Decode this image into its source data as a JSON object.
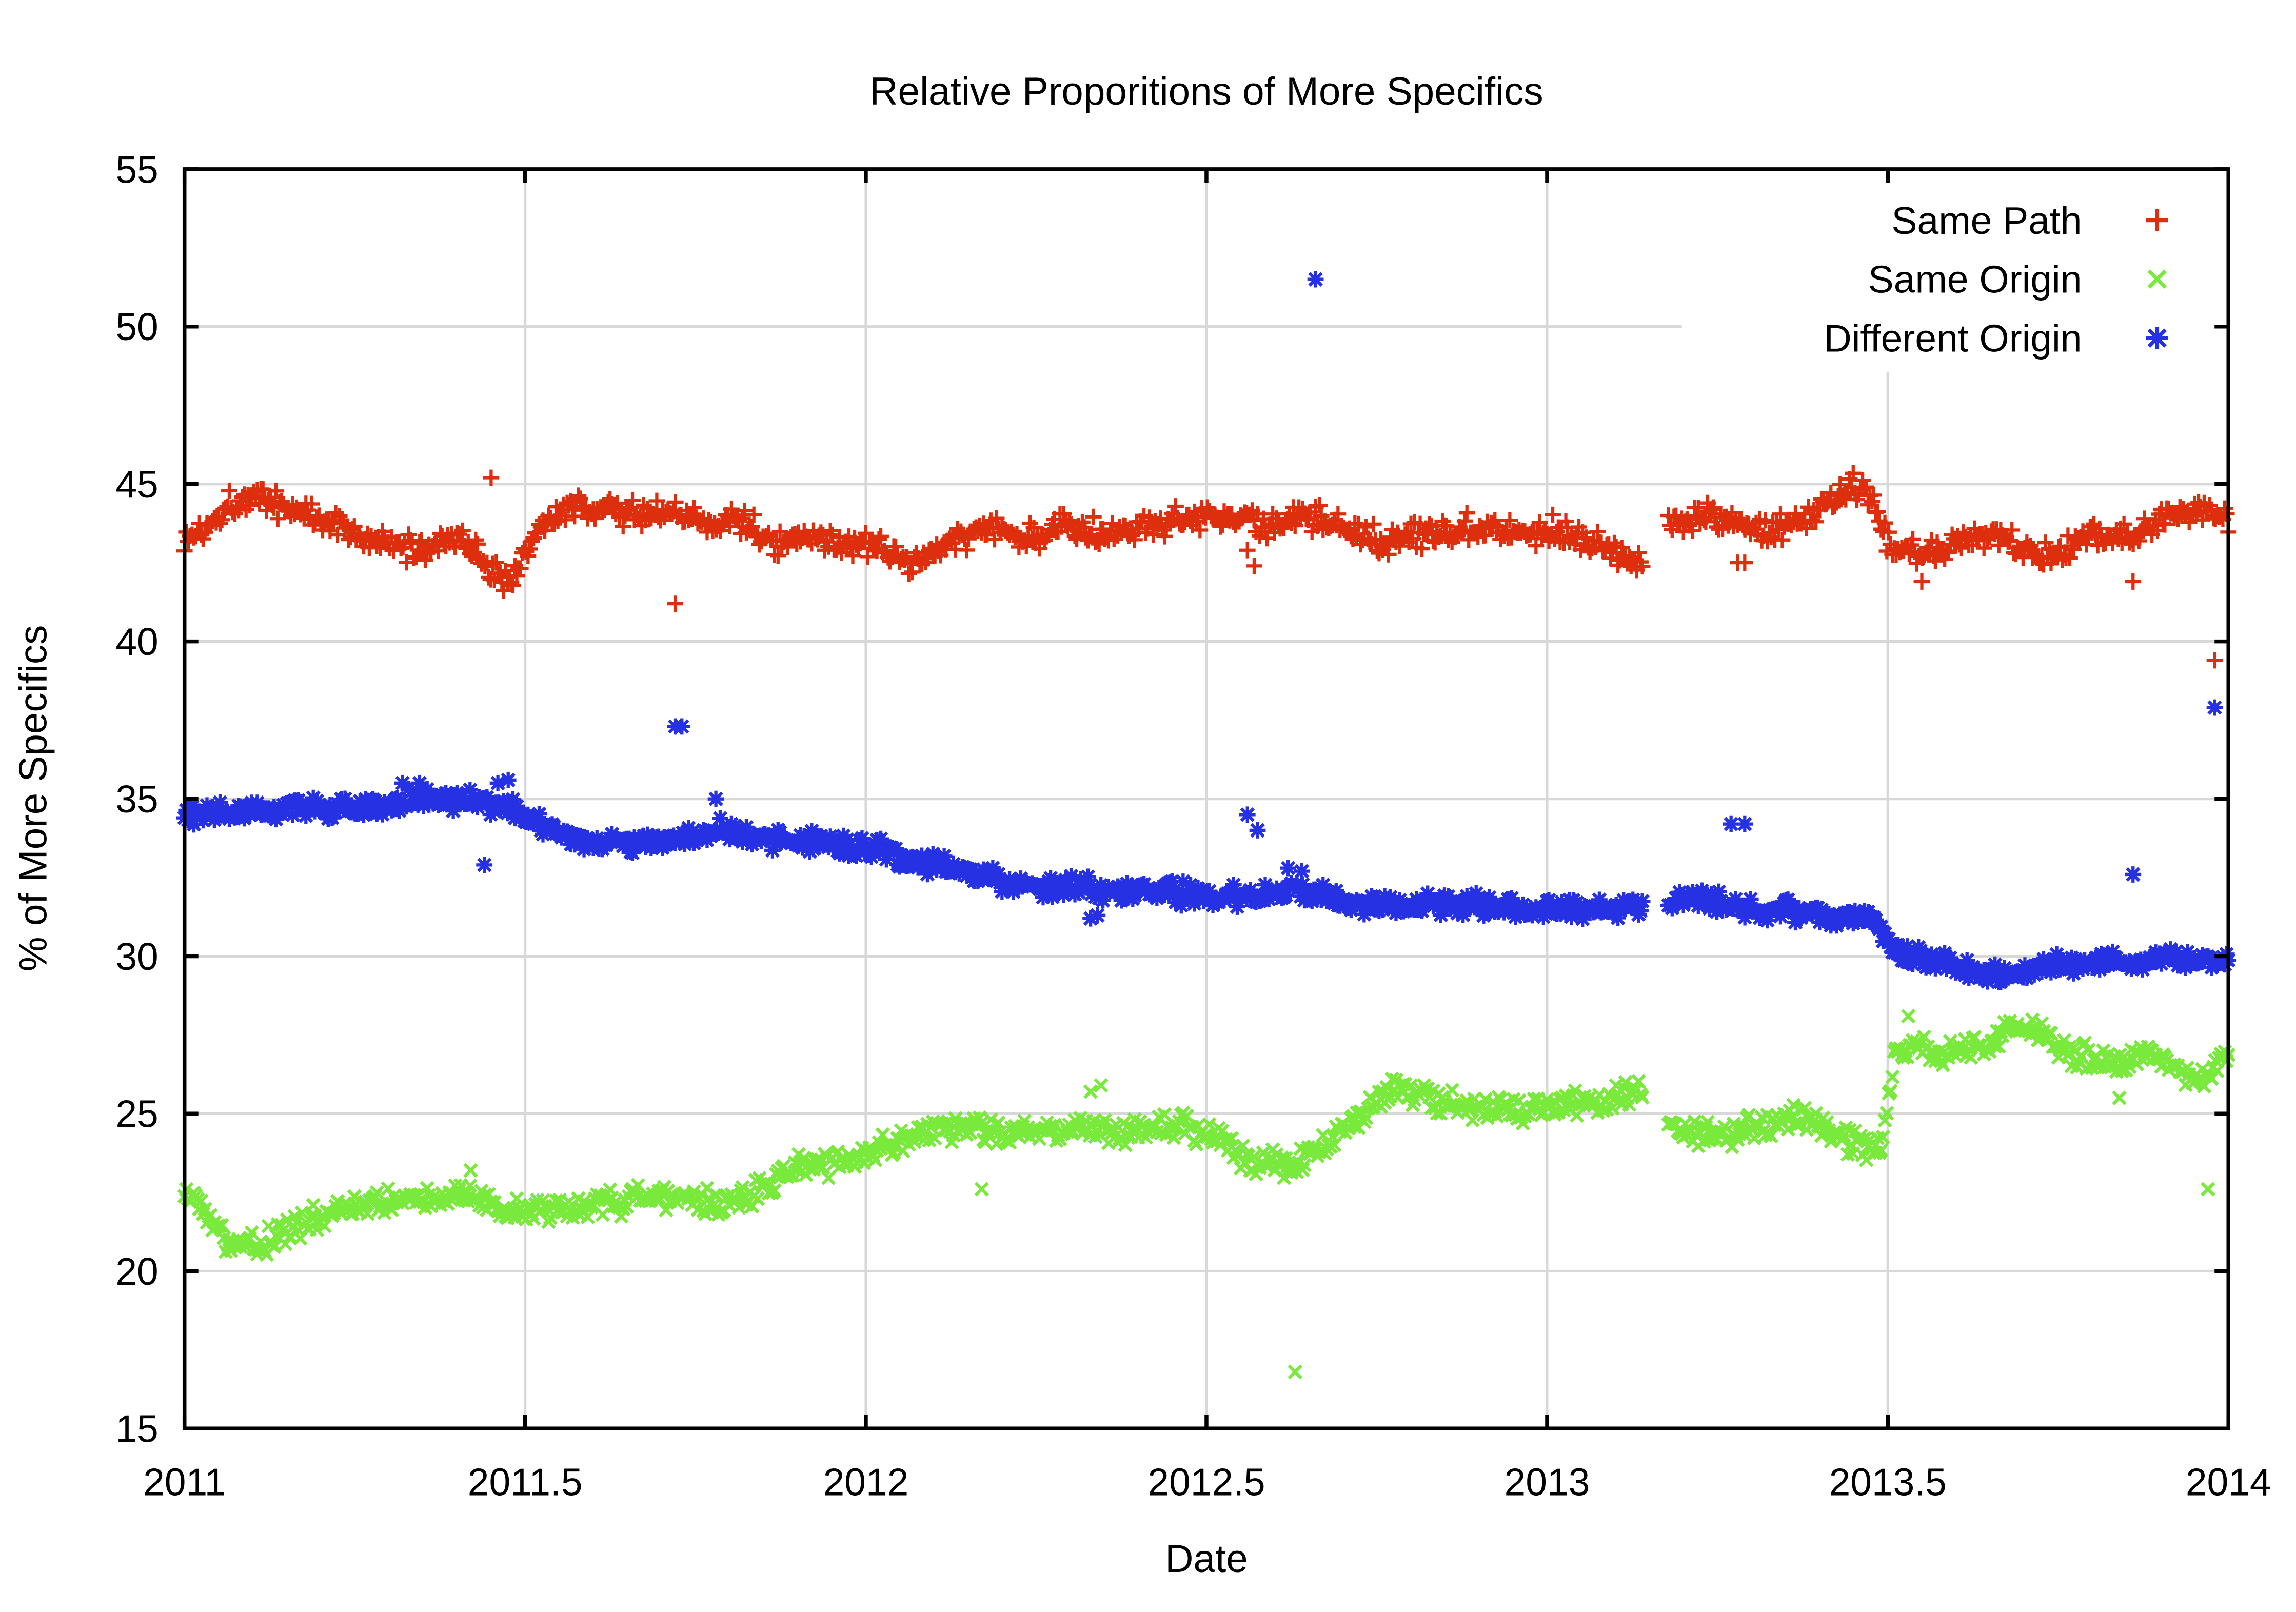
{
  "title": "Relative Proporitions of More Specifics",
  "chart_data": {
    "type": "scatter",
    "title": "Relative Proporitions of More Specifics",
    "xlabel": "Date",
    "ylabel": "% of More Specifics",
    "xlim": [
      2011,
      2014
    ],
    "ylim": [
      15,
      55
    ],
    "grid": true,
    "background_color": "#ffffff",
    "grid_color": "#d8d8d8",
    "border_color": "#000000",
    "legend_position": "top-right-inside",
    "legend_opaque": true,
    "x_ticks": {
      "values": [
        2011,
        2011.5,
        2012,
        2012.5,
        2013,
        2013.5,
        2014
      ],
      "labels": [
        "2011",
        "2011.5",
        "2012",
        "2012.5",
        "2013",
        "2013.5",
        "2014"
      ]
    },
    "y_ticks": {
      "values": [
        15,
        20,
        25,
        30,
        35,
        40,
        45,
        50,
        55
      ],
      "labels": [
        "15",
        "20",
        "25",
        "30",
        "35",
        "40",
        "45",
        "50",
        "55"
      ]
    },
    "points_per_year": 365,
    "data_gap_x": [
      2013.142,
      2013.178
    ],
    "noise_seed": 1337,
    "series": [
      {
        "name": "Same Path",
        "marker": "plus",
        "color": "#dd2f0e",
        "jitter": 0.26,
        "trend": [
          [
            2011.0,
            43.2
          ],
          [
            2011.03,
            43.6
          ],
          [
            2011.06,
            44.3
          ],
          [
            2011.09,
            44.6
          ],
          [
            2011.12,
            44.5
          ],
          [
            2011.16,
            44.2
          ],
          [
            2011.2,
            43.9
          ],
          [
            2011.24,
            43.6
          ],
          [
            2011.27,
            43.2
          ],
          [
            2011.31,
            43.0
          ],
          [
            2011.34,
            42.9
          ],
          [
            2011.38,
            43.2
          ],
          [
            2011.41,
            43.3
          ],
          [
            2011.44,
            42.5
          ],
          [
            2011.46,
            42.1
          ],
          [
            2011.48,
            41.9
          ],
          [
            2011.49,
            42.5
          ],
          [
            2011.52,
            43.6
          ],
          [
            2011.56,
            44.1
          ],
          [
            2011.59,
            44.3
          ],
          [
            2011.63,
            44.2
          ],
          [
            2011.67,
            44.0
          ],
          [
            2011.71,
            44.1
          ],
          [
            2011.74,
            43.9
          ],
          [
            2011.77,
            43.7
          ],
          [
            2011.8,
            44.0
          ],
          [
            2011.83,
            43.6
          ],
          [
            2011.87,
            43.2
          ],
          [
            2011.91,
            43.1
          ],
          [
            2011.94,
            43.3
          ],
          [
            2011.97,
            43.1
          ],
          [
            2012.0,
            43.0
          ],
          [
            2012.04,
            42.7
          ],
          [
            2012.07,
            42.6
          ],
          [
            2012.11,
            42.9
          ],
          [
            2012.14,
            43.3
          ],
          [
            2012.17,
            43.6
          ],
          [
            2012.21,
            43.4
          ],
          [
            2012.25,
            43.3
          ],
          [
            2012.29,
            43.7
          ],
          [
            2012.33,
            43.6
          ],
          [
            2012.37,
            43.5
          ],
          [
            2012.41,
            43.7
          ],
          [
            2012.45,
            43.8
          ],
          [
            2012.49,
            44.0
          ],
          [
            2012.53,
            44.0
          ],
          [
            2012.57,
            43.7
          ],
          [
            2012.61,
            43.8
          ],
          [
            2012.65,
            43.9
          ],
          [
            2012.69,
            43.7
          ],
          [
            2012.73,
            43.4
          ],
          [
            2012.77,
            43.2
          ],
          [
            2012.81,
            43.4
          ],
          [
            2012.85,
            43.5
          ],
          [
            2012.89,
            43.7
          ],
          [
            2012.93,
            43.6
          ],
          [
            2012.97,
            43.5
          ],
          [
            2013.01,
            43.6
          ],
          [
            2013.05,
            43.3
          ],
          [
            2013.09,
            43.0
          ],
          [
            2013.12,
            42.7
          ],
          [
            2013.14,
            42.5
          ],
          [
            2013.18,
            43.7
          ],
          [
            2013.22,
            44.0
          ],
          [
            2013.26,
            43.9
          ],
          [
            2013.3,
            43.5
          ],
          [
            2013.34,
            43.6
          ],
          [
            2013.38,
            43.8
          ],
          [
            2013.42,
            44.6
          ],
          [
            2013.45,
            45.0
          ],
          [
            2013.47,
            44.9
          ],
          [
            2013.5,
            43.2
          ],
          [
            2013.53,
            42.9
          ],
          [
            2013.57,
            42.8
          ],
          [
            2013.61,
            43.3
          ],
          [
            2013.65,
            43.4
          ],
          [
            2013.68,
            43.2
          ],
          [
            2013.72,
            42.7
          ],
          [
            2013.76,
            43.0
          ],
          [
            2013.8,
            43.4
          ],
          [
            2013.84,
            43.3
          ],
          [
            2013.88,
            43.6
          ],
          [
            2013.92,
            44.0
          ],
          [
            2013.95,
            44.2
          ],
          [
            2014.0,
            43.9
          ]
        ],
        "outliers": [
          [
            2011.45,
            45.2
          ],
          [
            2011.72,
            41.2
          ],
          [
            2012.56,
            42.9
          ],
          [
            2012.57,
            42.4
          ],
          [
            2013.28,
            42.5
          ],
          [
            2013.29,
            42.5
          ],
          [
            2013.55,
            41.9
          ],
          [
            2013.86,
            41.9
          ],
          [
            2013.98,
            39.4
          ]
        ]
      },
      {
        "name": "Same Origin",
        "marker": "cross",
        "color": "#79e93b",
        "jitter": 0.26,
        "trend": [
          [
            2011.0,
            22.3
          ],
          [
            2011.03,
            22.0
          ],
          [
            2011.05,
            21.3
          ],
          [
            2011.07,
            20.7
          ],
          [
            2011.1,
            20.8
          ],
          [
            2011.13,
            21.0
          ],
          [
            2011.16,
            21.4
          ],
          [
            2011.19,
            21.7
          ],
          [
            2011.22,
            21.9
          ],
          [
            2011.26,
            22.1
          ],
          [
            2011.3,
            22.2
          ],
          [
            2011.34,
            22.2
          ],
          [
            2011.38,
            22.4
          ],
          [
            2011.41,
            22.5
          ],
          [
            2011.44,
            22.2
          ],
          [
            2011.47,
            22.0
          ],
          [
            2011.51,
            21.9
          ],
          [
            2011.55,
            22.0
          ],
          [
            2011.59,
            22.1
          ],
          [
            2011.63,
            22.2
          ],
          [
            2011.67,
            22.3
          ],
          [
            2011.71,
            22.4
          ],
          [
            2011.75,
            22.3
          ],
          [
            2011.79,
            22.1
          ],
          [
            2011.83,
            22.5
          ],
          [
            2011.87,
            23.0
          ],
          [
            2011.91,
            23.3
          ],
          [
            2011.95,
            23.5
          ],
          [
            2011.99,
            23.7
          ],
          [
            2012.03,
            24.0
          ],
          [
            2012.07,
            24.3
          ],
          [
            2012.11,
            24.5
          ],
          [
            2012.15,
            24.5
          ],
          [
            2012.19,
            24.4
          ],
          [
            2012.23,
            24.4
          ],
          [
            2012.27,
            24.5
          ],
          [
            2012.31,
            24.5
          ],
          [
            2012.35,
            24.4
          ],
          [
            2012.39,
            24.5
          ],
          [
            2012.43,
            24.6
          ],
          [
            2012.47,
            24.6
          ],
          [
            2012.51,
            24.3
          ],
          [
            2012.54,
            24.0
          ],
          [
            2012.57,
            23.3
          ],
          [
            2012.61,
            23.4
          ],
          [
            2012.65,
            23.6
          ],
          [
            2012.69,
            24.4
          ],
          [
            2012.73,
            25.0
          ],
          [
            2012.77,
            25.6
          ],
          [
            2012.8,
            25.8
          ],
          [
            2012.83,
            25.4
          ],
          [
            2012.87,
            25.3
          ],
          [
            2012.91,
            25.2
          ],
          [
            2012.95,
            25.1
          ],
          [
            2012.99,
            25.2
          ],
          [
            2013.03,
            25.3
          ],
          [
            2013.07,
            25.4
          ],
          [
            2013.11,
            25.6
          ],
          [
            2013.14,
            25.8
          ],
          [
            2013.18,
            24.6
          ],
          [
            2013.22,
            24.4
          ],
          [
            2013.26,
            24.2
          ],
          [
            2013.3,
            24.5
          ],
          [
            2013.34,
            24.7
          ],
          [
            2013.38,
            24.9
          ],
          [
            2013.42,
            24.4
          ],
          [
            2013.45,
            24.0
          ],
          [
            2013.49,
            23.8
          ],
          [
            2013.51,
            26.9
          ],
          [
            2013.54,
            27.2
          ],
          [
            2013.57,
            26.8
          ],
          [
            2013.61,
            27.0
          ],
          [
            2013.65,
            27.3
          ],
          [
            2013.68,
            27.6
          ],
          [
            2013.71,
            27.7
          ],
          [
            2013.74,
            27.2
          ],
          [
            2013.77,
            26.9
          ],
          [
            2013.81,
            26.6
          ],
          [
            2013.85,
            26.5
          ],
          [
            2013.88,
            27.0
          ],
          [
            2013.91,
            26.7
          ],
          [
            2013.94,
            26.3
          ],
          [
            2013.97,
            26.2
          ],
          [
            2014.0,
            26.8
          ]
        ],
        "outliers": [
          [
            2011.42,
            23.2
          ],
          [
            2012.17,
            22.6
          ],
          [
            2012.33,
            25.7
          ],
          [
            2012.345,
            25.9
          ],
          [
            2012.63,
            16.8
          ],
          [
            2013.53,
            28.1
          ],
          [
            2013.84,
            25.5
          ],
          [
            2013.97,
            22.6
          ]
        ]
      },
      {
        "name": "Different Origin",
        "marker": "asterisk",
        "color": "#2531e3",
        "jitter": 0.2,
        "trend": [
          [
            2011.0,
            34.5
          ],
          [
            2011.06,
            34.6
          ],
          [
            2011.12,
            34.6
          ],
          [
            2011.18,
            34.7
          ],
          [
            2011.24,
            34.7
          ],
          [
            2011.29,
            34.8
          ],
          [
            2011.33,
            35.0
          ],
          [
            2011.37,
            35.0
          ],
          [
            2011.41,
            35.0
          ],
          [
            2011.45,
            34.8
          ],
          [
            2011.48,
            34.7
          ],
          [
            2011.51,
            34.3
          ],
          [
            2011.55,
            33.9
          ],
          [
            2011.59,
            33.7
          ],
          [
            2011.63,
            33.6
          ],
          [
            2011.67,
            33.6
          ],
          [
            2011.71,
            33.7
          ],
          [
            2011.75,
            33.8
          ],
          [
            2011.79,
            34.0
          ],
          [
            2011.82,
            33.9
          ],
          [
            2011.86,
            33.7
          ],
          [
            2011.9,
            33.7
          ],
          [
            2011.94,
            33.6
          ],
          [
            2011.98,
            33.5
          ],
          [
            2012.02,
            33.4
          ],
          [
            2012.06,
            33.1
          ],
          [
            2012.1,
            32.9
          ],
          [
            2012.14,
            32.7
          ],
          [
            2012.18,
            32.5
          ],
          [
            2012.22,
            32.3
          ],
          [
            2012.26,
            32.2
          ],
          [
            2012.31,
            32.2
          ],
          [
            2012.36,
            32.1
          ],
          [
            2012.41,
            32.1
          ],
          [
            2012.46,
            32.0
          ],
          [
            2012.51,
            31.9
          ],
          [
            2012.56,
            31.9
          ],
          [
            2012.61,
            32.0
          ],
          [
            2012.66,
            32.0
          ],
          [
            2012.71,
            31.7
          ],
          [
            2012.76,
            31.6
          ],
          [
            2012.81,
            31.6
          ],
          [
            2012.86,
            31.7
          ],
          [
            2012.91,
            31.6
          ],
          [
            2012.96,
            31.5
          ],
          [
            2013.01,
            31.4
          ],
          [
            2013.06,
            31.5
          ],
          [
            2013.11,
            31.6
          ],
          [
            2013.14,
            31.7
          ],
          [
            2013.18,
            31.8
          ],
          [
            2013.23,
            31.8
          ],
          [
            2013.27,
            31.6
          ],
          [
            2013.31,
            31.5
          ],
          [
            2013.36,
            31.4
          ],
          [
            2013.41,
            31.3
          ],
          [
            2013.45,
            31.2
          ],
          [
            2013.48,
            31.1
          ],
          [
            2013.51,
            30.2
          ],
          [
            2013.54,
            30.0
          ],
          [
            2013.58,
            29.8
          ],
          [
            2013.62,
            29.5
          ],
          [
            2013.65,
            29.4
          ],
          [
            2013.69,
            29.5
          ],
          [
            2013.73,
            29.7
          ],
          [
            2013.77,
            29.7
          ],
          [
            2013.81,
            29.8
          ],
          [
            2013.86,
            29.8
          ],
          [
            2013.91,
            29.9
          ],
          [
            2013.96,
            29.9
          ],
          [
            2014.0,
            29.8
          ]
        ],
        "outliers": [
          [
            2011.32,
            35.5
          ],
          [
            2011.345,
            35.5
          ],
          [
            2011.44,
            32.9
          ],
          [
            2011.46,
            35.5
          ],
          [
            2011.475,
            35.6
          ],
          [
            2011.72,
            37.3
          ],
          [
            2011.73,
            37.3
          ],
          [
            2011.78,
            35.0
          ],
          [
            2012.33,
            31.2
          ],
          [
            2012.34,
            31.3
          ],
          [
            2012.56,
            34.5
          ],
          [
            2012.575,
            34.0
          ],
          [
            2012.62,
            32.8
          ],
          [
            2012.64,
            32.7
          ],
          [
            2012.66,
            51.5
          ],
          [
            2013.27,
            34.2
          ],
          [
            2013.29,
            34.2
          ],
          [
            2013.86,
            32.6
          ],
          [
            2013.98,
            37.9
          ]
        ]
      }
    ]
  }
}
